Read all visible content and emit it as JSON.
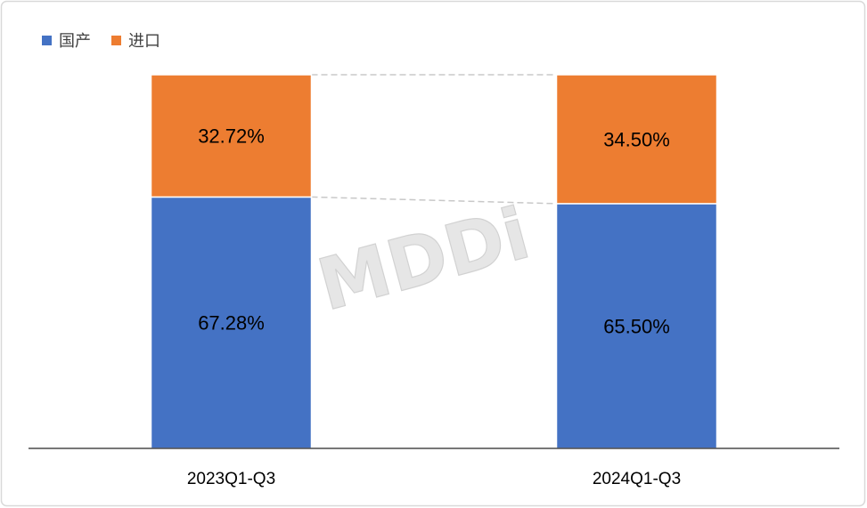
{
  "chart_data": {
    "type": "bar",
    "stacked": true,
    "categories": [
      "2023Q1-Q3",
      "2024Q1-Q3"
    ],
    "series": [
      {
        "name": "国产",
        "values": [
          67.28,
          65.5
        ],
        "labels": [
          "67.28%",
          "65.50%"
        ],
        "color": "#4472C4"
      },
      {
        "name": "进口",
        "values": [
          32.72,
          34.5
        ],
        "labels": [
          "32.72%",
          "34.50%"
        ],
        "color": "#ED7D31"
      }
    ],
    "ylim": [
      0,
      100
    ],
    "grid": false,
    "legend": "top-left",
    "series_lines": true
  },
  "watermark": {
    "text": "MDDi"
  }
}
